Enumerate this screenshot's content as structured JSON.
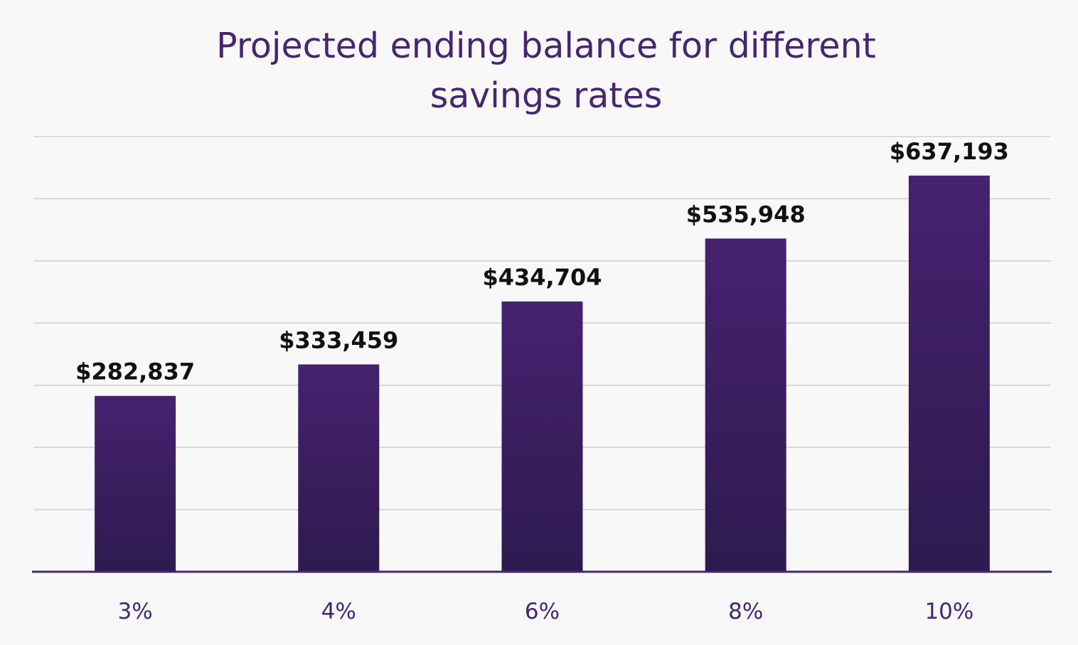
{
  "chart_data": {
    "type": "bar",
    "title": "Projected ending balance for different savings rates",
    "xlabel": "",
    "ylabel": "",
    "categories": [
      "3%",
      "4%",
      "6%",
      "8%",
      "10%"
    ],
    "values": [
      282837,
      333459,
      434704,
      535948,
      637193
    ],
    "value_labels": [
      "$282,837",
      "$333,459",
      "$434,704",
      "$535,948",
      "$637,193"
    ],
    "ylim": [
      0,
      700000
    ],
    "grid": true,
    "legend": "none",
    "colors": {
      "bar_top": "#46226f",
      "bar_bottom": "#2e1a4f",
      "title": "#46266f",
      "tick_label": "#46266f",
      "value_label": "#111111",
      "gridline": "#cfcfcf",
      "baseline": "#46266f",
      "background": "#f8f8f9"
    }
  }
}
